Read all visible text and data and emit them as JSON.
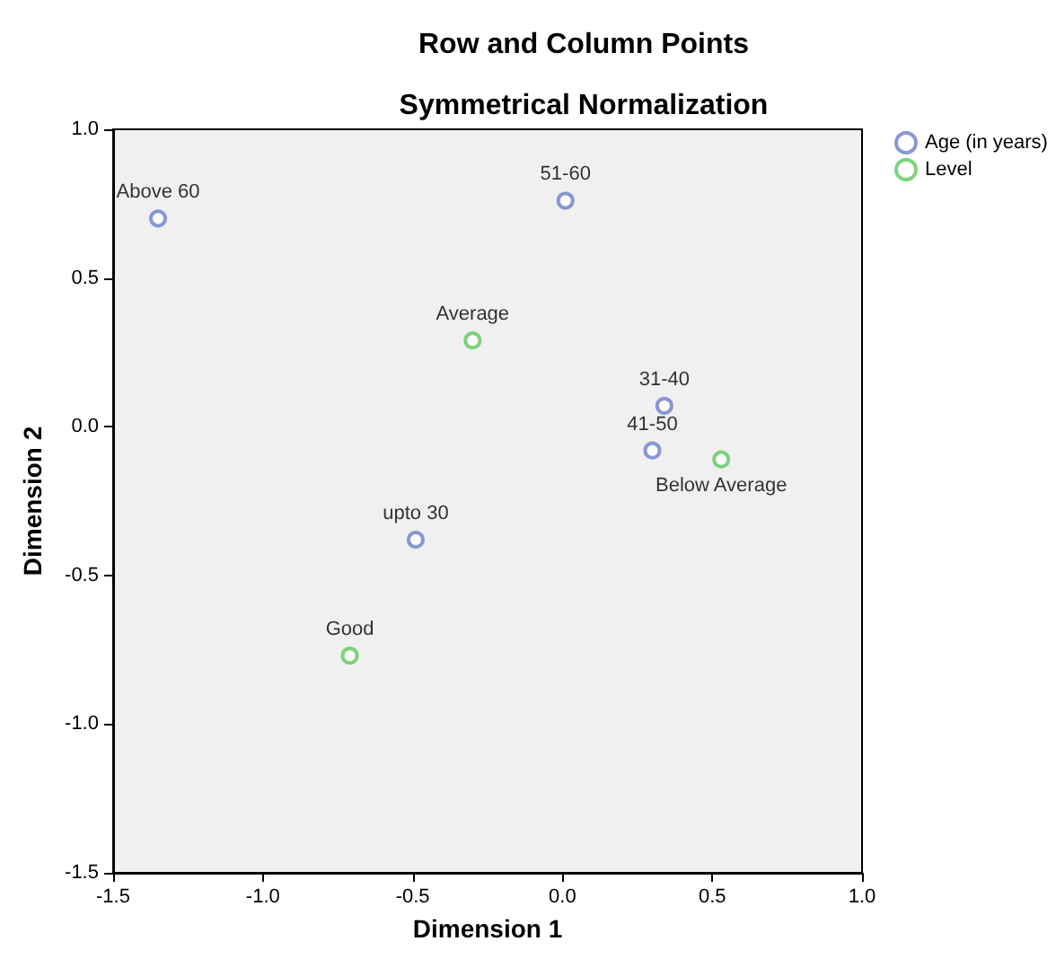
{
  "chart_data": {
    "type": "scatter",
    "title": "Row and Column Points",
    "subtitle": "Symmetrical Normalization",
    "xlabel": "Dimension 1",
    "ylabel": "Dimension 2",
    "series": [
      {
        "name": "Age (in years)",
        "color": "#6b7fc9",
        "x": [
          -1.35,
          0.01,
          0.34,
          0.3,
          -0.49
        ],
        "values": [
          0.7,
          0.76,
          0.07,
          -0.08,
          -0.38
        ],
        "value_labels": [
          "Above 60",
          "51-60",
          "31-40",
          "41-50",
          "upto 30"
        ]
      },
      {
        "name": "Level",
        "color": "#5ec95e",
        "x": [
          -0.3,
          0.53,
          -0.71
        ],
        "values": [
          0.29,
          -0.11,
          -0.77
        ],
        "value_labels": [
          "Average",
          "Below Average",
          "Good"
        ]
      }
    ],
    "xlim": [
      -1.5,
      1.0
    ],
    "ylim": [
      -1.5,
      1.0
    ],
    "xticks": [
      {
        "value": -1.5,
        "label": "-1.5"
      },
      {
        "value": -1.0,
        "label": "-1.0"
      },
      {
        "value": -0.5,
        "label": "-0.5"
      },
      {
        "value": 0,
        "label": "0.0"
      },
      {
        "value": 0.5,
        "label": "0.5"
      },
      {
        "value": 1.0,
        "label": "1.0"
      }
    ],
    "yticks": [
      {
        "value": -1.5,
        "label": "-1.5"
      },
      {
        "value": -1.0,
        "label": "-1.0"
      },
      {
        "value": -0.5,
        "label": "-0.5"
      },
      {
        "value": 0,
        "label": "0.0"
      },
      {
        "value": 0.5,
        "label": "0.5"
      },
      {
        "value": 1.0,
        "label": "1.0"
      }
    ],
    "grid": false,
    "legend": "top right",
    "marker": "circle"
  }
}
